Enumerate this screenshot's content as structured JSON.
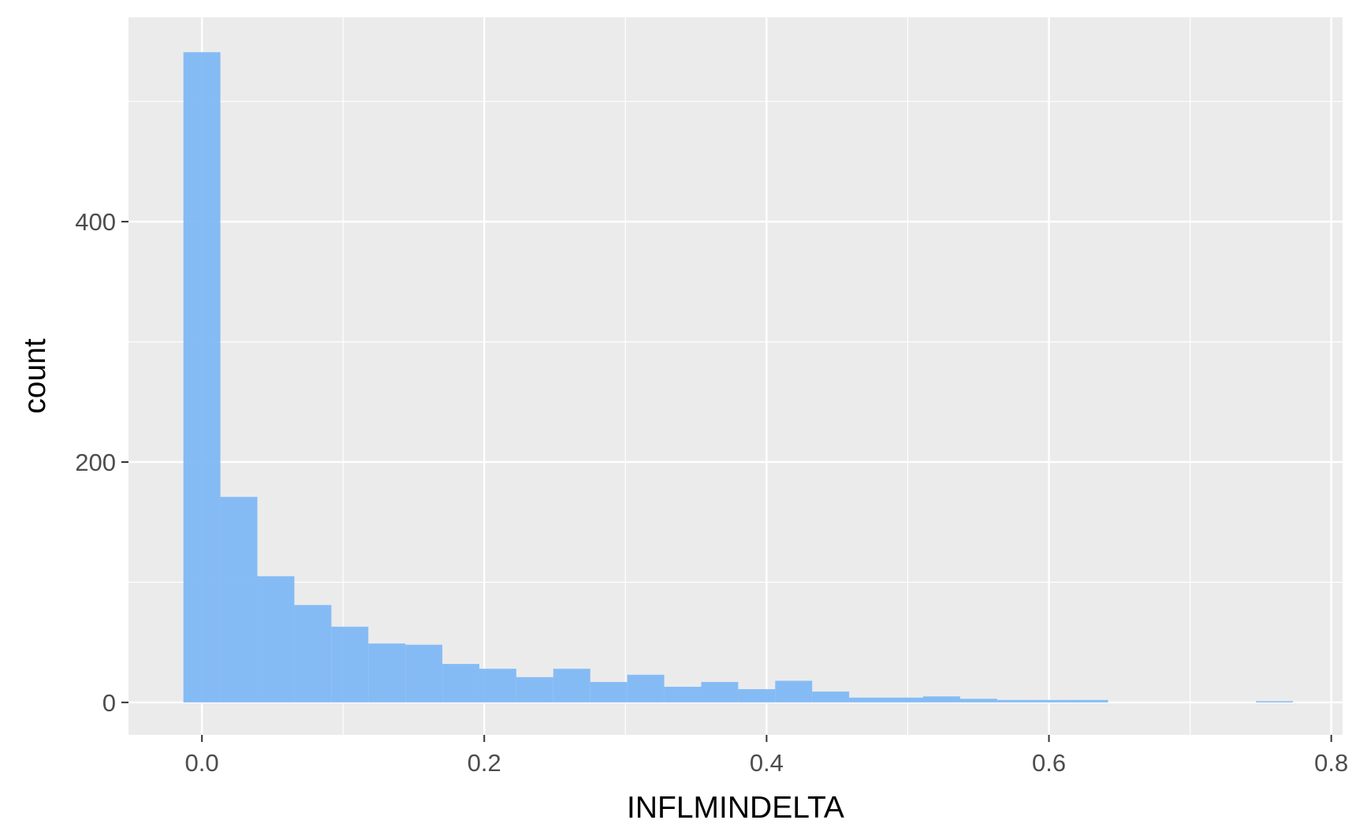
{
  "chart_data": {
    "type": "bar",
    "histogram": true,
    "xlabel": "INFLMINDELTA",
    "ylabel": "count",
    "xlim": [
      -0.052,
      0.808
    ],
    "ylim": [
      -27,
      570
    ],
    "x_ticks": [
      0.0,
      0.2,
      0.4,
      0.6,
      0.8
    ],
    "x_tick_labels": [
      "0.0",
      "0.2",
      "0.4",
      "0.6",
      "0.8"
    ],
    "x_minor_ticks": [
      0.1,
      0.3,
      0.5,
      0.7
    ],
    "y_ticks": [
      0,
      200,
      400
    ],
    "y_tick_labels": [
      "0",
      "200",
      "400"
    ],
    "y_minor_ticks": [
      100,
      300,
      500
    ],
    "grid": true,
    "bin_width": 0.0262,
    "bins": [
      {
        "x0": -0.0131,
        "x1": 0.0131,
        "count": 541
      },
      {
        "x0": 0.0131,
        "x1": 0.0393,
        "count": 171
      },
      {
        "x0": 0.0393,
        "x1": 0.0655,
        "count": 105
      },
      {
        "x0": 0.0655,
        "x1": 0.0917,
        "count": 81
      },
      {
        "x0": 0.0917,
        "x1": 0.1179,
        "count": 63
      },
      {
        "x0": 0.1179,
        "x1": 0.1441,
        "count": 49
      },
      {
        "x0": 0.1441,
        "x1": 0.1703,
        "count": 48
      },
      {
        "x0": 0.1703,
        "x1": 0.1965,
        "count": 32
      },
      {
        "x0": 0.1965,
        "x1": 0.2227,
        "count": 28
      },
      {
        "x0": 0.2227,
        "x1": 0.2489,
        "count": 21
      },
      {
        "x0": 0.2489,
        "x1": 0.2751,
        "count": 28
      },
      {
        "x0": 0.2751,
        "x1": 0.3013,
        "count": 17
      },
      {
        "x0": 0.3013,
        "x1": 0.3275,
        "count": 23
      },
      {
        "x0": 0.3275,
        "x1": 0.3537,
        "count": 13
      },
      {
        "x0": 0.3537,
        "x1": 0.3799,
        "count": 17
      },
      {
        "x0": 0.3799,
        "x1": 0.4061,
        "count": 11
      },
      {
        "x0": 0.4061,
        "x1": 0.4323,
        "count": 18
      },
      {
        "x0": 0.4323,
        "x1": 0.4585,
        "count": 9
      },
      {
        "x0": 0.4585,
        "x1": 0.4847,
        "count": 4
      },
      {
        "x0": 0.4847,
        "x1": 0.5109,
        "count": 4
      },
      {
        "x0": 0.5109,
        "x1": 0.5371,
        "count": 5
      },
      {
        "x0": 0.5371,
        "x1": 0.5633,
        "count": 3
      },
      {
        "x0": 0.5633,
        "x1": 0.5895,
        "count": 2
      },
      {
        "x0": 0.5895,
        "x1": 0.6157,
        "count": 2
      },
      {
        "x0": 0.6157,
        "x1": 0.6419,
        "count": 2
      },
      {
        "x0": 0.6419,
        "x1": 0.6681,
        "count": 0
      },
      {
        "x0": 0.6681,
        "x1": 0.6943,
        "count": 0
      },
      {
        "x0": 0.6943,
        "x1": 0.7205,
        "count": 0
      },
      {
        "x0": 0.7205,
        "x1": 0.7467,
        "count": 0
      },
      {
        "x0": 0.7467,
        "x1": 0.7729,
        "count": 1
      }
    ],
    "colors": {
      "panel": "#ebebeb",
      "grid": "#ffffff",
      "bar_fill": "#7fb8f5",
      "tick": "#333333"
    }
  }
}
